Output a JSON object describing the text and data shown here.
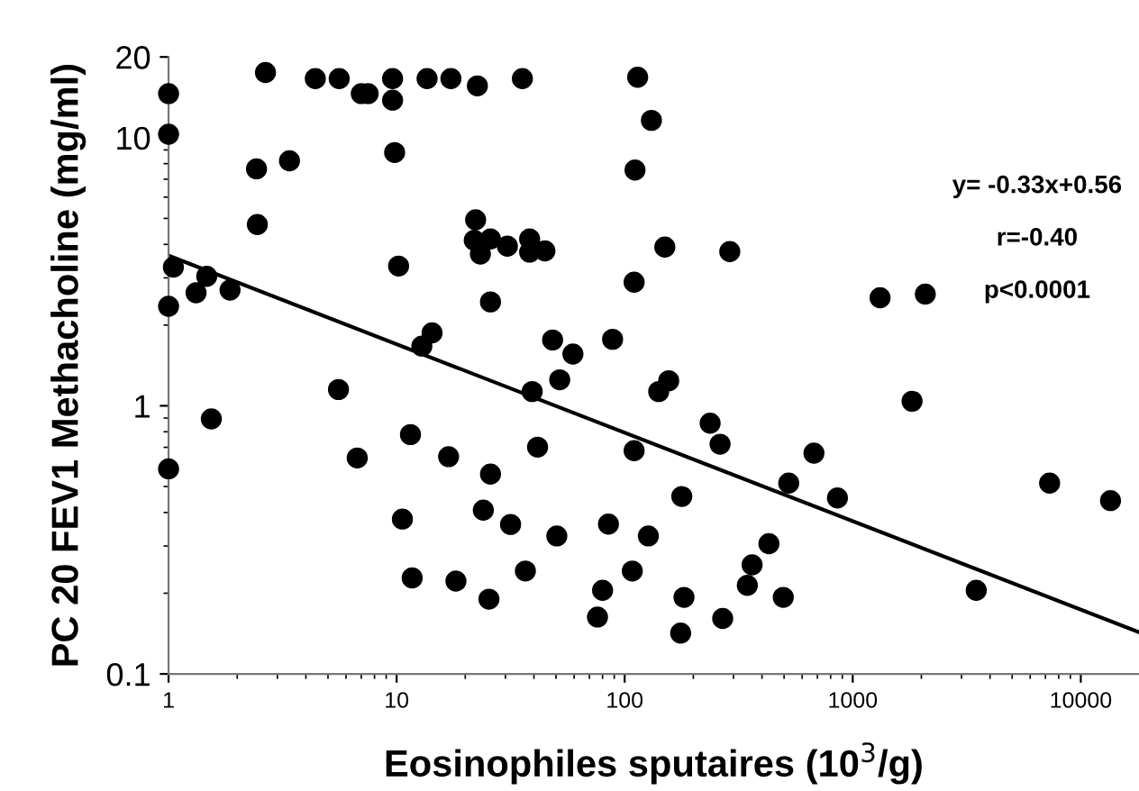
{
  "chart_data": {
    "type": "scatter",
    "xlabel": "Eosinophiles sputaires (10$^{3}$/g)",
    "ylabel": "PC 20 FEV1 Methacholine (mg/ml)",
    "log": "xy",
    "xlim": [
      1,
      18000
    ],
    "ylim": [
      0.1,
      20
    ],
    "xticks": [
      1,
      10,
      100,
      1000,
      10000
    ],
    "yticks": [
      0.1,
      1,
      10,
      20
    ],
    "grid": false,
    "legend": false,
    "annotations": [
      "y= -0.33x+0.56",
      "r=-0.40",
      "p<0.0001"
    ],
    "series": [
      {
        "marker": "circle",
        "color": "#000000",
        "x": [
          1,
          1,
          2.66,
          4.4,
          5.6,
          7.0,
          7.5,
          9.6,
          9.6,
          13.6,
          17.3,
          22.6,
          35.6,
          2.43,
          3.39,
          9.8,
          2.45,
          22.2,
          21.9,
          25.8,
          23.3,
          30.6,
          38.3,
          38.3,
          44.7,
          1.05,
          1,
          1.32,
          1.47,
          1.86,
          10.2,
          25.8,
          12.9,
          14.3,
          48.3,
          59.3,
          51.9,
          39.3,
          5.56,
          114,
          131,
          111,
          150,
          289,
          110,
          88.5,
          156,
          141,
          1318,
          2080,
          1820,
          1.54,
          1.0,
          6.72,
          11.5,
          16.9,
          25.8,
          41.5,
          10.6,
          24.0,
          31.6,
          50.4,
          11.7,
          18.2,
          25.4,
          36.7,
          76,
          237,
          262,
          110,
          676,
          524,
          857,
          7300,
          13500,
          178,
          84.9,
          127,
          429,
          362,
          345,
          108,
          80,
          182,
          176,
          269,
          496,
          3480
        ],
        "values": [
          14.6,
          10.3,
          17.5,
          16.6,
          16.6,
          14.6,
          14.6,
          16.6,
          13.8,
          16.6,
          16.6,
          15.6,
          16.6,
          7.65,
          8.2,
          8.8,
          4.74,
          4.94,
          4.14,
          4.19,
          3.68,
          3.94,
          4.19,
          3.74,
          3.78,
          3.29,
          2.35,
          2.64,
          3.04,
          2.7,
          3.32,
          2.44,
          1.67,
          1.87,
          1.76,
          1.56,
          1.25,
          1.13,
          1.15,
          16.8,
          11.6,
          7.57,
          3.91,
          3.76,
          2.89,
          1.77,
          1.24,
          1.13,
          2.53,
          2.61,
          1.04,
          0.893,
          0.582,
          0.639,
          0.781,
          0.646,
          0.556,
          0.701,
          0.378,
          0.408,
          0.361,
          0.327,
          0.228,
          0.222,
          0.19,
          0.242,
          0.163,
          0.861,
          0.719,
          0.68,
          0.666,
          0.515,
          0.453,
          0.515,
          0.443,
          0.459,
          0.362,
          0.327,
          0.306,
          0.255,
          0.214,
          0.242,
          0.205,
          0.193,
          0.142,
          0.161,
          0.193,
          0.205
        ]
      },
      {
        "type": "line",
        "marker": "none",
        "color": "#000000",
        "line_style": "solid",
        "x": [
          1,
          18000
        ],
        "values": [
          3.63,
          0.143
        ]
      }
    ]
  }
}
